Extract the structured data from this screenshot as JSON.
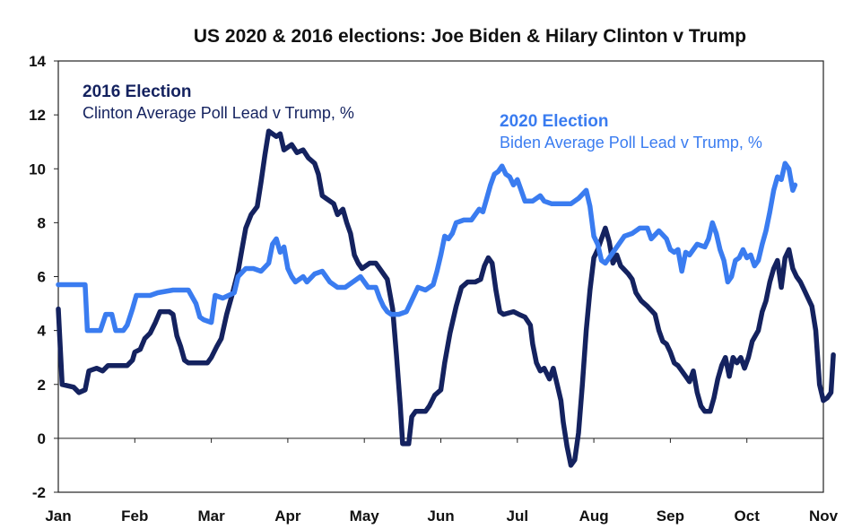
{
  "chart_data": {
    "type": "line",
    "title": "US 2020 & 2016 elections: Joe Biden & Hilary Clinton v Trump",
    "xlabel": "",
    "ylabel": "",
    "x_ticks": [
      "Jan",
      "Feb",
      "Mar",
      "Apr",
      "May",
      "Jun",
      "Jul",
      "Aug",
      "Sep",
      "Oct",
      "Nov"
    ],
    "x_unit": "month (0 = Jan 1, 10 = Nov 1)",
    "xlim": [
      0,
      10
    ],
    "y_ticks": [
      "14",
      "12",
      "10",
      "8",
      "6",
      "4",
      "2",
      "0",
      "-2"
    ],
    "ylim": [
      -2,
      14
    ],
    "grid": false,
    "series": [
      {
        "name": "2016 Election",
        "label_title": "2016 Election",
        "label_subtitle": "Clinton Average Poll Lead v Trump, %",
        "color": "#14225f",
        "points": [
          [
            0.0,
            4.8
          ],
          [
            0.05,
            2.0
          ],
          [
            0.2,
            1.9
          ],
          [
            0.27,
            1.7
          ],
          [
            0.35,
            1.8
          ],
          [
            0.4,
            2.5
          ],
          [
            0.5,
            2.6
          ],
          [
            0.58,
            2.5
          ],
          [
            0.65,
            2.7
          ],
          [
            0.8,
            2.7
          ],
          [
            0.9,
            2.7
          ],
          [
            0.97,
            2.9
          ],
          [
            1.0,
            3.2
          ],
          [
            1.07,
            3.3
          ],
          [
            1.13,
            3.7
          ],
          [
            1.2,
            3.9
          ],
          [
            1.27,
            4.3
          ],
          [
            1.33,
            4.7
          ],
          [
            1.45,
            4.7
          ],
          [
            1.5,
            4.6
          ],
          [
            1.55,
            3.8
          ],
          [
            1.6,
            3.4
          ],
          [
            1.65,
            2.9
          ],
          [
            1.7,
            2.8
          ],
          [
            1.85,
            2.8
          ],
          [
            1.95,
            2.8
          ],
          [
            2.0,
            3.0
          ],
          [
            2.07,
            3.4
          ],
          [
            2.13,
            3.7
          ],
          [
            2.2,
            4.6
          ],
          [
            2.27,
            5.3
          ],
          [
            2.35,
            6.2
          ],
          [
            2.4,
            7.0
          ],
          [
            2.45,
            7.8
          ],
          [
            2.52,
            8.3
          ],
          [
            2.6,
            8.6
          ],
          [
            2.65,
            9.5
          ],
          [
            2.7,
            10.5
          ],
          [
            2.75,
            11.4
          ],
          [
            2.85,
            11.2
          ],
          [
            2.9,
            11.3
          ],
          [
            2.95,
            10.7
          ],
          [
            3.05,
            10.9
          ],
          [
            3.12,
            10.6
          ],
          [
            3.2,
            10.7
          ],
          [
            3.27,
            10.4
          ],
          [
            3.35,
            10.2
          ],
          [
            3.4,
            9.8
          ],
          [
            3.45,
            9.0
          ],
          [
            3.5,
            8.9
          ],
          [
            3.6,
            8.7
          ],
          [
            3.65,
            8.3
          ],
          [
            3.72,
            8.5
          ],
          [
            3.77,
            8.0
          ],
          [
            3.82,
            7.6
          ],
          [
            3.87,
            6.8
          ],
          [
            3.92,
            6.5
          ],
          [
            3.97,
            6.3
          ],
          [
            4.07,
            6.5
          ],
          [
            4.15,
            6.5
          ],
          [
            4.2,
            6.3
          ],
          [
            4.3,
            5.9
          ],
          [
            4.37,
            4.8
          ],
          [
            4.42,
            3.1
          ],
          [
            4.47,
            1.2
          ],
          [
            4.5,
            -0.2
          ],
          [
            4.58,
            -0.2
          ],
          [
            4.62,
            0.8
          ],
          [
            4.67,
            1.0
          ],
          [
            4.8,
            1.0
          ],
          [
            4.85,
            1.2
          ],
          [
            4.92,
            1.6
          ],
          [
            5.0,
            1.8
          ],
          [
            5.05,
            2.8
          ],
          [
            5.12,
            3.9
          ],
          [
            5.2,
            4.9
          ],
          [
            5.27,
            5.6
          ],
          [
            5.35,
            5.8
          ],
          [
            5.45,
            5.8
          ],
          [
            5.52,
            5.9
          ],
          [
            5.57,
            6.4
          ],
          [
            5.62,
            6.7
          ],
          [
            5.67,
            6.5
          ],
          [
            5.72,
            5.5
          ],
          [
            5.77,
            4.7
          ],
          [
            5.82,
            4.6
          ],
          [
            5.95,
            4.7
          ],
          [
            6.02,
            4.6
          ],
          [
            6.1,
            4.5
          ],
          [
            6.17,
            4.2
          ],
          [
            6.2,
            3.5
          ],
          [
            6.25,
            2.8
          ],
          [
            6.3,
            2.5
          ],
          [
            6.35,
            2.6
          ],
          [
            6.42,
            2.2
          ],
          [
            6.47,
            2.6
          ],
          [
            6.52,
            2.0
          ],
          [
            6.57,
            1.4
          ],
          [
            6.6,
            0.6
          ],
          [
            6.65,
            -0.3
          ],
          [
            6.7,
            -1.0
          ],
          [
            6.75,
            -0.8
          ],
          [
            6.8,
            0.2
          ],
          [
            6.85,
            2.0
          ],
          [
            6.9,
            4.0
          ],
          [
            6.95,
            5.5
          ],
          [
            7.0,
            6.7
          ],
          [
            7.05,
            7.0
          ],
          [
            7.1,
            7.4
          ],
          [
            7.15,
            7.8
          ],
          [
            7.2,
            7.3
          ],
          [
            7.25,
            6.5
          ],
          [
            7.3,
            6.8
          ],
          [
            7.35,
            6.4
          ],
          [
            7.45,
            6.1
          ],
          [
            7.5,
            5.9
          ],
          [
            7.55,
            5.4
          ],
          [
            7.62,
            5.1
          ],
          [
            7.7,
            4.9
          ],
          [
            7.8,
            4.6
          ],
          [
            7.85,
            4.0
          ],
          [
            7.9,
            3.6
          ],
          [
            7.95,
            3.5
          ],
          [
            8.0,
            3.2
          ],
          [
            8.05,
            2.8
          ],
          [
            8.1,
            2.7
          ],
          [
            8.15,
            2.5
          ],
          [
            8.2,
            2.3
          ],
          [
            8.25,
            2.1
          ],
          [
            8.3,
            2.5
          ],
          [
            8.35,
            1.7
          ],
          [
            8.4,
            1.2
          ],
          [
            8.45,
            1.0
          ],
          [
            8.52,
            1.0
          ],
          [
            8.57,
            1.5
          ],
          [
            8.62,
            2.2
          ],
          [
            8.67,
            2.7
          ],
          [
            8.72,
            3.0
          ],
          [
            8.77,
            2.3
          ],
          [
            8.82,
            3.0
          ],
          [
            8.87,
            2.8
          ],
          [
            8.92,
            3.0
          ],
          [
            8.97,
            2.6
          ],
          [
            9.02,
            3.0
          ],
          [
            9.07,
            3.6
          ],
          [
            9.15,
            4.0
          ],
          [
            9.2,
            4.7
          ],
          [
            9.25,
            5.1
          ],
          [
            9.3,
            5.8
          ],
          [
            9.35,
            6.3
          ],
          [
            9.4,
            6.6
          ],
          [
            9.45,
            5.6
          ],
          [
            9.5,
            6.7
          ],
          [
            9.55,
            7.0
          ],
          [
            9.6,
            6.3
          ],
          [
            9.65,
            6.0
          ],
          [
            9.7,
            5.8
          ],
          [
            9.75,
            5.5
          ],
          [
            9.8,
            5.2
          ],
          [
            9.85,
            4.9
          ],
          [
            9.9,
            4.0
          ],
          [
            9.95,
            2.0
          ],
          [
            10.0,
            1.4
          ],
          [
            10.05,
            1.5
          ],
          [
            10.1,
            1.7
          ],
          [
            10.13,
            3.1
          ]
        ]
      },
      {
        "name": "2020 Election",
        "label_title": "2020 Election",
        "label_subtitle": "Biden Average Poll Lead v Trump, %",
        "color": "#3a7cf0",
        "points": [
          [
            0.0,
            5.7
          ],
          [
            0.35,
            5.7
          ],
          [
            0.38,
            4.0
          ],
          [
            0.55,
            4.0
          ],
          [
            0.62,
            4.6
          ],
          [
            0.7,
            4.6
          ],
          [
            0.75,
            4.0
          ],
          [
            0.85,
            4.0
          ],
          [
            0.9,
            4.2
          ],
          [
            0.97,
            4.8
          ],
          [
            1.02,
            5.3
          ],
          [
            1.2,
            5.3
          ],
          [
            1.3,
            5.4
          ],
          [
            1.5,
            5.5
          ],
          [
            1.7,
            5.5
          ],
          [
            1.8,
            5.0
          ],
          [
            1.85,
            4.5
          ],
          [
            1.9,
            4.4
          ],
          [
            2.0,
            4.3
          ],
          [
            2.05,
            5.3
          ],
          [
            2.15,
            5.2
          ],
          [
            2.3,
            5.4
          ],
          [
            2.35,
            6.0
          ],
          [
            2.45,
            6.3
          ],
          [
            2.55,
            6.3
          ],
          [
            2.65,
            6.2
          ],
          [
            2.75,
            6.5
          ],
          [
            2.8,
            7.2
          ],
          [
            2.85,
            7.4
          ],
          [
            2.9,
            6.9
          ],
          [
            2.95,
            7.1
          ],
          [
            3.0,
            6.3
          ],
          [
            3.05,
            6.0
          ],
          [
            3.1,
            5.8
          ],
          [
            3.2,
            6.0
          ],
          [
            3.25,
            5.8
          ],
          [
            3.35,
            6.1
          ],
          [
            3.45,
            6.2
          ],
          [
            3.55,
            5.8
          ],
          [
            3.65,
            5.6
          ],
          [
            3.75,
            5.6
          ],
          [
            3.85,
            5.8
          ],
          [
            3.95,
            6.0
          ],
          [
            4.05,
            5.6
          ],
          [
            4.15,
            5.6
          ],
          [
            4.2,
            5.2
          ],
          [
            4.25,
            4.9
          ],
          [
            4.3,
            4.7
          ],
          [
            4.35,
            4.6
          ],
          [
            4.45,
            4.6
          ],
          [
            4.55,
            4.7
          ],
          [
            4.6,
            5.0
          ],
          [
            4.7,
            5.6
          ],
          [
            4.8,
            5.5
          ],
          [
            4.9,
            5.7
          ],
          [
            4.95,
            6.2
          ],
          [
            5.0,
            6.8
          ],
          [
            5.05,
            7.5
          ],
          [
            5.1,
            7.4
          ],
          [
            5.15,
            7.6
          ],
          [
            5.2,
            8.0
          ],
          [
            5.3,
            8.1
          ],
          [
            5.4,
            8.1
          ],
          [
            5.5,
            8.5
          ],
          [
            5.55,
            8.4
          ],
          [
            5.6,
            8.9
          ],
          [
            5.65,
            9.4
          ],
          [
            5.7,
            9.8
          ],
          [
            5.75,
            9.9
          ],
          [
            5.8,
            10.1
          ],
          [
            5.85,
            9.8
          ],
          [
            5.9,
            9.7
          ],
          [
            5.95,
            9.4
          ],
          [
            6.0,
            9.6
          ],
          [
            6.05,
            9.2
          ],
          [
            6.1,
            8.8
          ],
          [
            6.2,
            8.8
          ],
          [
            6.3,
            9.0
          ],
          [
            6.35,
            8.8
          ],
          [
            6.45,
            8.7
          ],
          [
            6.55,
            8.7
          ],
          [
            6.7,
            8.7
          ],
          [
            6.8,
            8.9
          ],
          [
            6.9,
            9.2
          ],
          [
            6.95,
            8.6
          ],
          [
            7.0,
            7.5
          ],
          [
            7.05,
            7.2
          ],
          [
            7.1,
            6.6
          ],
          [
            7.15,
            6.5
          ],
          [
            7.2,
            6.7
          ],
          [
            7.3,
            7.1
          ],
          [
            7.4,
            7.5
          ],
          [
            7.5,
            7.6
          ],
          [
            7.6,
            7.8
          ],
          [
            7.7,
            7.8
          ],
          [
            7.75,
            7.4
          ],
          [
            7.85,
            7.7
          ],
          [
            7.95,
            7.4
          ],
          [
            8.0,
            7.0
          ],
          [
            8.05,
            6.9
          ],
          [
            8.1,
            7.0
          ],
          [
            8.15,
            6.2
          ],
          [
            8.2,
            6.9
          ],
          [
            8.25,
            6.8
          ],
          [
            8.3,
            7.0
          ],
          [
            8.35,
            7.2
          ],
          [
            8.45,
            7.1
          ],
          [
            8.5,
            7.4
          ],
          [
            8.55,
            8.0
          ],
          [
            8.6,
            7.6
          ],
          [
            8.65,
            7.0
          ],
          [
            8.7,
            6.6
          ],
          [
            8.75,
            5.8
          ],
          [
            8.8,
            6.0
          ],
          [
            8.85,
            6.6
          ],
          [
            8.9,
            6.7
          ],
          [
            8.95,
            7.0
          ],
          [
            9.0,
            6.7
          ],
          [
            9.05,
            6.8
          ],
          [
            9.1,
            6.4
          ],
          [
            9.15,
            6.6
          ],
          [
            9.2,
            7.2
          ],
          [
            9.25,
            7.7
          ],
          [
            9.3,
            8.4
          ],
          [
            9.35,
            9.2
          ],
          [
            9.4,
            9.7
          ],
          [
            9.45,
            9.6
          ],
          [
            9.5,
            10.2
          ],
          [
            9.55,
            10.0
          ],
          [
            9.6,
            9.2
          ],
          [
            9.63,
            9.4
          ]
        ]
      }
    ]
  }
}
